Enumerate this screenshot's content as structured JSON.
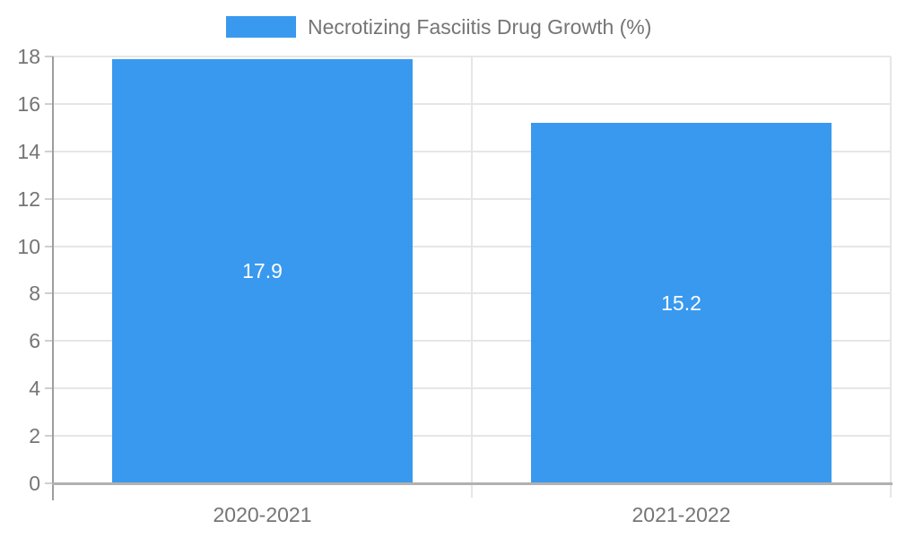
{
  "chart_data": {
    "type": "bar",
    "title": "Necrotizing Fasciitis Drug Growth (%)",
    "legend": {
      "label": "Necrotizing Fasciitis Drug Growth (%)",
      "position": "top"
    },
    "categories": [
      "2020-2021",
      "2021-2022"
    ],
    "series": [
      {
        "name": "Necrotizing Fasciitis Drug Growth (%)",
        "values": [
          17.9,
          15.2
        ]
      }
    ],
    "values": [
      17.9,
      15.2
    ],
    "value_labels": [
      "17.9",
      "15.2"
    ],
    "xlabel": "",
    "ylabel": "",
    "ylim": [
      0,
      18
    ],
    "yticks": [
      0,
      2,
      4,
      6,
      8,
      10,
      12,
      14,
      16,
      18
    ],
    "grid": true,
    "colors": {
      "bar": "#3999ee",
      "gridline": "#e6e6e6",
      "axis_line": "#b1b1b1",
      "y_axis_line": "#9e9e9e",
      "tick": "#cfcfcf",
      "axis_text": "#757575",
      "value_label": "#ffffff",
      "background": "#ffffff"
    }
  }
}
